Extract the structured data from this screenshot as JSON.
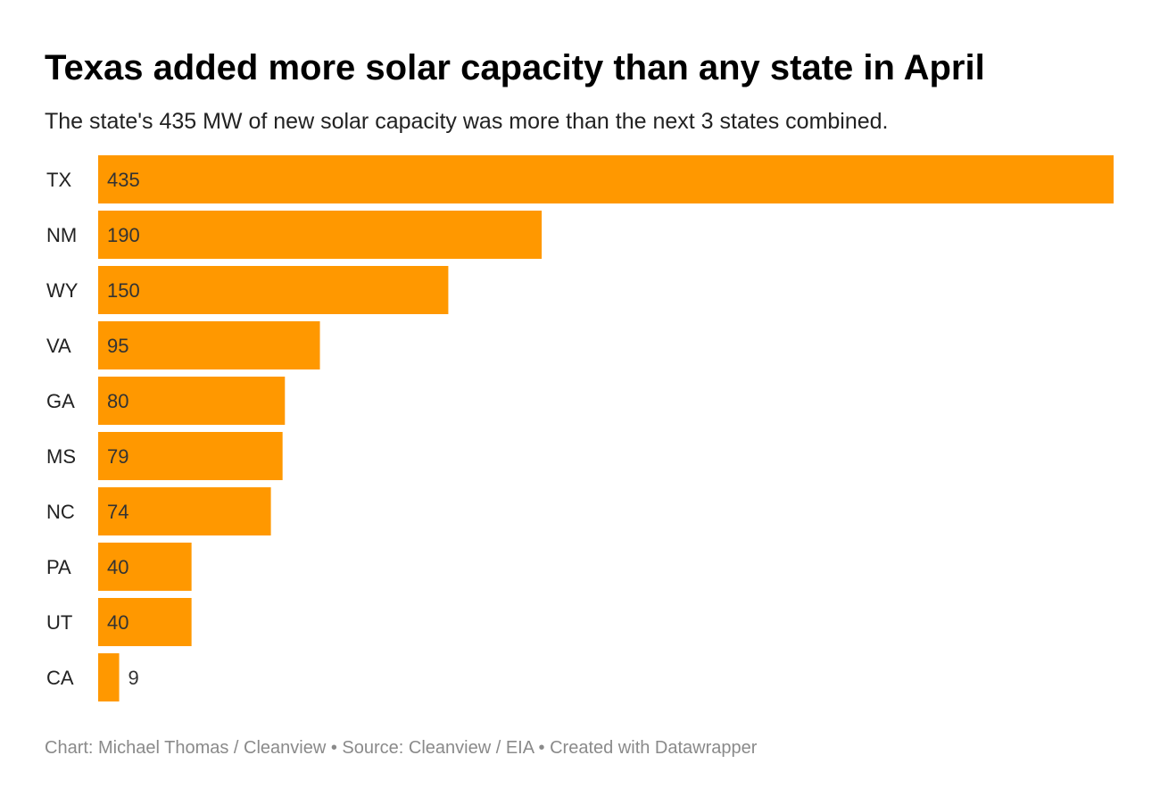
{
  "chart_data": {
    "type": "bar",
    "orientation": "horizontal",
    "title": "Texas added more solar capacity than any state in April",
    "subtitle": "The state's 435 MW of new solar capacity was more than the next 3 states combined.",
    "categories": [
      "TX",
      "NM",
      "WY",
      "VA",
      "GA",
      "MS",
      "NC",
      "PA",
      "UT",
      "CA"
    ],
    "values": [
      435,
      190,
      150,
      95,
      80,
      79,
      74,
      40,
      40,
      9
    ],
    "xlim": [
      0,
      435
    ],
    "grid": false,
    "legend": "none",
    "bar_color": "#ff9800"
  },
  "footer": {
    "credit": "Chart: Michael Thomas / Cleanview • Source: Cleanview / EIA • Created with Datawrapper"
  }
}
